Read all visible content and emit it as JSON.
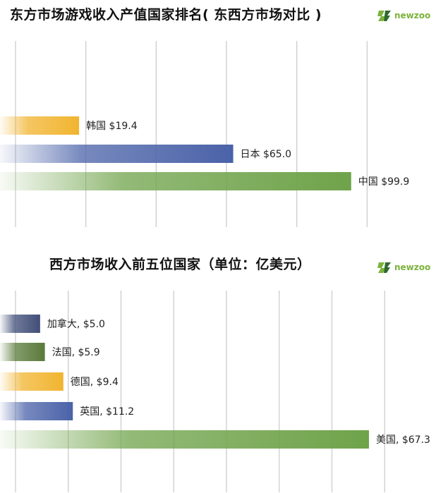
{
  "logo": {
    "text": "newzoo",
    "icon": "newzoo-logo-icon",
    "color": "#7bb33b"
  },
  "colors": {
    "gold": "#f1b42f",
    "blue": "#4a62a8",
    "green": "#6fa34a",
    "dark_blue": "#414e78",
    "dark_green": "#5a7a3a"
  },
  "chart_data": [
    {
      "type": "bar",
      "orientation": "horizontal",
      "title": "东方市场游戏收入产值国家排名( 东西方市场对比 )",
      "categories": [
        "韩国",
        "日本",
        "中国"
      ],
      "values": [
        19.4,
        65.0,
        99.9
      ],
      "labels": [
        "韩国 $19.4",
        "日本 $65.0",
        "中国 $99.9"
      ],
      "colors": [
        "#f1b42f",
        "#4a62a8",
        "#6fa34a"
      ],
      "xlim": [
        -4,
        125
      ],
      "grid": true,
      "grid_count": 7
    },
    {
      "type": "bar",
      "orientation": "horizontal",
      "title": "西方市场收入前五位国家（单位：亿美元）",
      "categories": [
        "加拿大",
        "法国",
        "德国",
        "英国",
        "美国"
      ],
      "values": [
        5.0,
        5.9,
        9.4,
        11.2,
        67.3
      ],
      "labels": [
        "加拿大, $5.0",
        "法国, $5.9",
        "德国, $9.4",
        "英国, $11.2",
        "美国, $67.3"
      ],
      "colors": [
        "#414e78",
        "#5a7a3a",
        "#f1b42f",
        "#4a62a8",
        "#6fa34a"
      ],
      "xlim": [
        -2.6,
        80
      ],
      "grid": true,
      "grid_count": 9
    }
  ]
}
